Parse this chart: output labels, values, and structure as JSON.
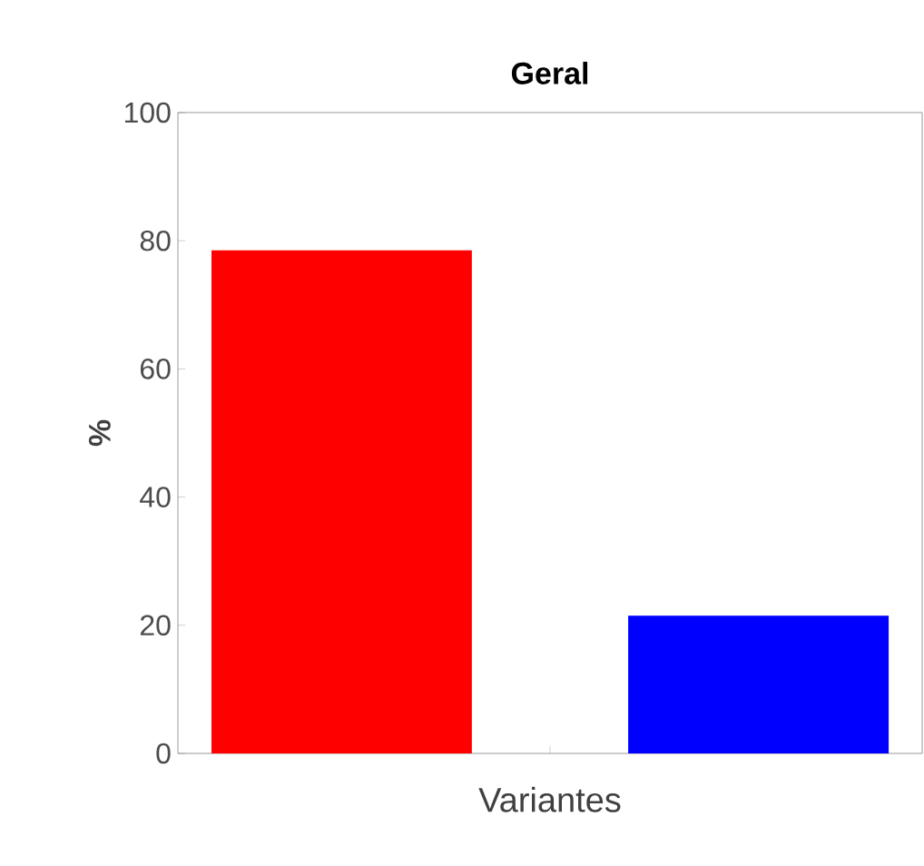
{
  "chart_data": {
    "type": "bar",
    "title": "Geral",
    "xlabel": "Variantes",
    "ylabel": "%",
    "categories": [
      null
    ],
    "series": [
      {
        "color": "#ff0000",
        "values": [
          78.5
        ]
      },
      {
        "color": "#0000ff",
        "values": [
          21.5
        ]
      }
    ],
    "ylim": [
      0,
      100
    ],
    "yticks": [
      0,
      20,
      40,
      60,
      80,
      100
    ],
    "tick_labels": "y"
  }
}
